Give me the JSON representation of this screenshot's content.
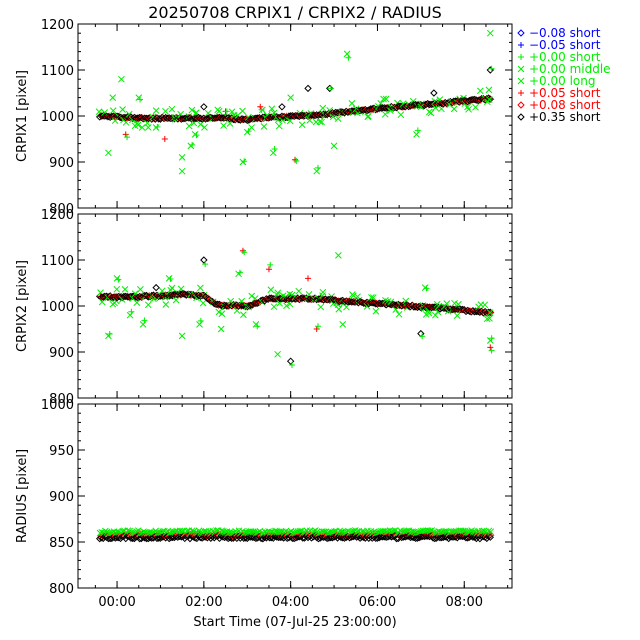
{
  "title": "20250708 CRPIX1 / CRPIX2 / RADIUS",
  "xlabel": "Start Time (07-Jul-25 23:00:00)",
  "colors": {
    "black": "#000000",
    "blue": "#0000ff",
    "green": "#00ee00",
    "red": "#ff0000"
  },
  "legend": [
    {
      "symbol": "diamond",
      "color": "blue",
      "label": "−0.08 short"
    },
    {
      "symbol": "plus",
      "color": "blue",
      "label": "−0.05 short"
    },
    {
      "symbol": "plus",
      "color": "green",
      "label": "+0.00 short"
    },
    {
      "symbol": "cross",
      "color": "green",
      "label": "+0.00 middle"
    },
    {
      "symbol": "cross",
      "color": "green",
      "label": "+0.00 long"
    },
    {
      "symbol": "plus",
      "color": "red",
      "label": "+0.05 short"
    },
    {
      "symbol": "diamond",
      "color": "red",
      "label": "+0.08 short"
    },
    {
      "symbol": "diamond",
      "color": "black",
      "label": "+0.35 short"
    }
  ],
  "chart_data": [
    {
      "type": "scatter",
      "ylabel": "CRPIX1 [pixel]",
      "ylim": [
        800,
        1200
      ],
      "yticks": [
        800,
        900,
        1000,
        1100,
        1200
      ],
      "xlim": [
        -0.9,
        9.1
      ],
      "xticks": [
        0,
        2,
        4,
        6,
        8
      ],
      "xticklabels": [
        "00:00",
        "02:00",
        "04:00",
        "06:00",
        "08:00"
      ],
      "baseline": [
        [
          -0.4,
          1000
        ],
        [
          0.5,
          995
        ],
        [
          2.5,
          995
        ],
        [
          3.0,
          992
        ],
        [
          3.5,
          997
        ],
        [
          4.5,
          1001
        ],
        [
          6.0,
          1016
        ],
        [
          7.5,
          1028
        ],
        [
          8.6,
          1038
        ]
      ],
      "outliers": [
        [
          -0.2,
          920
        ],
        [
          -0.1,
          1040
        ],
        [
          0.1,
          1080
        ],
        [
          0.2,
          960
        ],
        [
          0.5,
          1040
        ],
        [
          0.9,
          975
        ],
        [
          1.1,
          950
        ],
        [
          1.5,
          880
        ],
        [
          1.5,
          910
        ],
        [
          1.7,
          935
        ],
        [
          1.8,
          960
        ],
        [
          2.0,
          1020
        ],
        [
          2.5,
          1010
        ],
        [
          2.9,
          900
        ],
        [
          3.0,
          965
        ],
        [
          3.3,
          1020
        ],
        [
          3.6,
          920
        ],
        [
          3.8,
          1020
        ],
        [
          4.0,
          1040
        ],
        [
          4.1,
          905
        ],
        [
          4.4,
          1060
        ],
        [
          4.6,
          880
        ],
        [
          4.9,
          1060
        ],
        [
          5.0,
          935
        ],
        [
          5.3,
          1135
        ],
        [
          6.9,
          960
        ],
        [
          7.0,
          1020
        ],
        [
          7.3,
          1050
        ],
        [
          8.6,
          1180
        ],
        [
          8.6,
          1100
        ]
      ]
    },
    {
      "type": "scatter",
      "ylabel": "CRPIX2 [pixel]",
      "ylim": [
        800,
        1200
      ],
      "yticks": [
        800,
        900,
        1000,
        1100,
        1200
      ],
      "xlim": [
        -0.9,
        9.1
      ],
      "xticks": [
        0,
        2,
        4,
        6,
        8
      ],
      "xticklabels": [
        "00:00",
        "02:00",
        "04:00",
        "06:00",
        "08:00"
      ],
      "baseline": [
        [
          -0.4,
          1020
        ],
        [
          0.5,
          1020
        ],
        [
          1.5,
          1025
        ],
        [
          2.0,
          1022
        ],
        [
          2.3,
          1002
        ],
        [
          3.0,
          1000
        ],
        [
          3.5,
          1016
        ],
        [
          4.5,
          1016
        ],
        [
          6.0,
          1005
        ],
        [
          7.5,
          995
        ],
        [
          8.6,
          985
        ]
      ],
      "outliers": [
        [
          -0.2,
          935
        ],
        [
          0.0,
          1060
        ],
        [
          0.3,
          980
        ],
        [
          0.6,
          960
        ],
        [
          0.9,
          1040
        ],
        [
          1.2,
          1060
        ],
        [
          1.5,
          935
        ],
        [
          1.9,
          960
        ],
        [
          2.0,
          1100
        ],
        [
          2.4,
          950
        ],
        [
          2.8,
          1070
        ],
        [
          2.9,
          1120
        ],
        [
          3.2,
          960
        ],
        [
          3.5,
          1080
        ],
        [
          3.7,
          895
        ],
        [
          4.0,
          880
        ],
        [
          4.4,
          1060
        ],
        [
          4.6,
          950
        ],
        [
          5.1,
          1110
        ],
        [
          5.2,
          960
        ],
        [
          7.0,
          940
        ],
        [
          7.1,
          1040
        ],
        [
          8.6,
          910
        ],
        [
          8.6,
          925
        ]
      ]
    },
    {
      "type": "scatter",
      "ylabel": "RADIUS [pixel]",
      "ylim": [
        800,
        1000
      ],
      "yticks": [
        800,
        850,
        900,
        950,
        1000
      ],
      "xlim": [
        -0.9,
        9.1
      ],
      "xticks": [
        0,
        2,
        4,
        6,
        8
      ],
      "xticklabels": [
        "00:00",
        "02:00",
        "04:00",
        "06:00",
        "08:00"
      ],
      "baseline": [
        [
          -0.4,
          858
        ],
        [
          8.6,
          858
        ]
      ],
      "outliers": []
    }
  ]
}
